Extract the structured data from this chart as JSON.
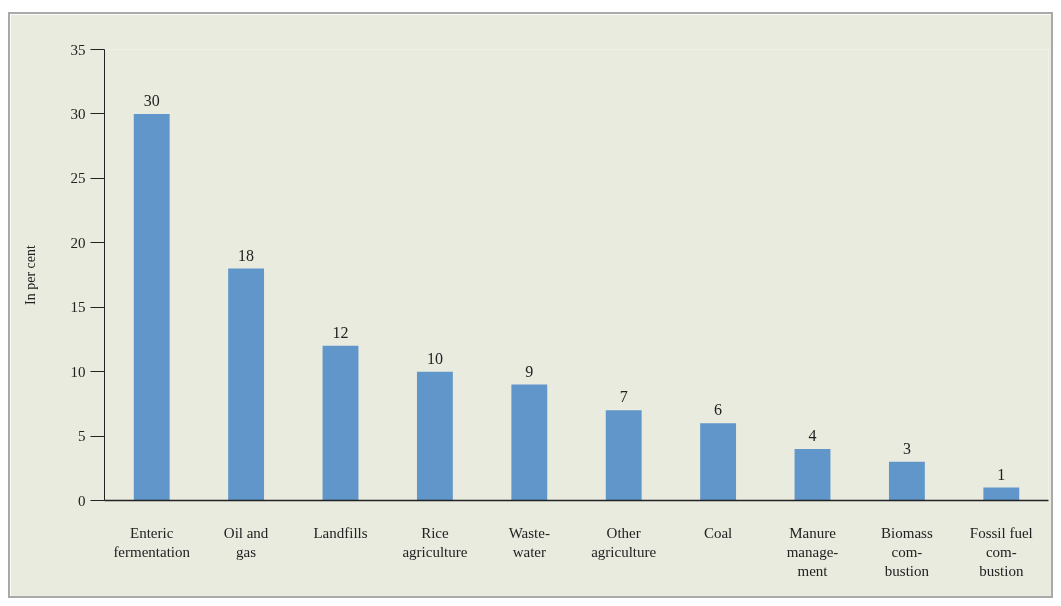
{
  "chart_data": {
    "type": "bar",
    "ylabel": "In per cent",
    "categories": [
      "Enteric\nfermentation",
      "Oil and\ngas",
      "Landfills",
      "Rice\nagriculture",
      "Waste-\nwater",
      "Other\nagriculture",
      "Coal",
      "Manure\nmanage-\nment",
      "Biomass\ncom-\nbustion",
      "Fossil fuel\ncom-\nbustion"
    ],
    "values": [
      30,
      18,
      12,
      10,
      9,
      7,
      6,
      4,
      3,
      1
    ],
    "color": "#6096c9",
    "ylim": [
      0,
      35
    ],
    "yticks": [
      0,
      5,
      10,
      15,
      20,
      25,
      30,
      35
    ],
    "grid": false,
    "data_labels": true
  }
}
